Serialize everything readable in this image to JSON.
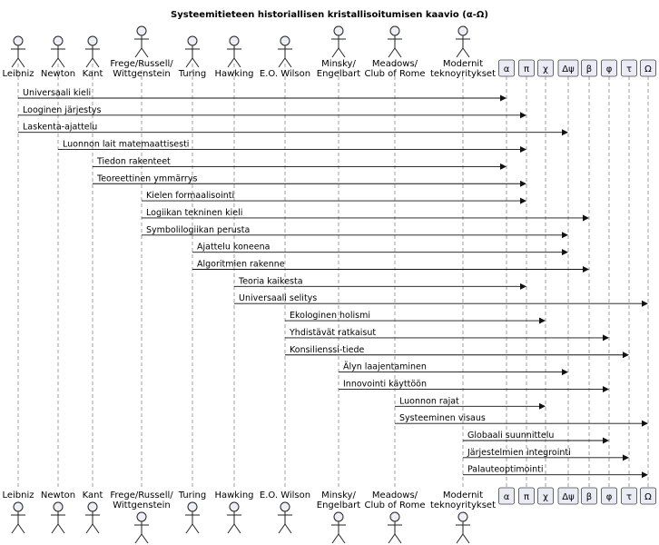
{
  "title": "Systeemitieteen historiallisen kristallisoitumisen kaavio (α-Ω)",
  "actors": [
    {
      "id": "leibniz",
      "lines": [
        "Leibniz"
      ]
    },
    {
      "id": "newton",
      "lines": [
        "Newton"
      ]
    },
    {
      "id": "kant",
      "lines": [
        "Kant"
      ]
    },
    {
      "id": "frege",
      "lines": [
        "Frege/Russell/",
        "Wittgenstein"
      ]
    },
    {
      "id": "turing",
      "lines": [
        "Turing"
      ]
    },
    {
      "id": "hawking",
      "lines": [
        "Hawking"
      ]
    },
    {
      "id": "wilson",
      "lines": [
        "E.O. Wilson"
      ]
    },
    {
      "id": "minsky",
      "lines": [
        "Minsky/",
        "Engelbart"
      ]
    },
    {
      "id": "meadows",
      "lines": [
        "Meadows/",
        "Club of Rome"
      ]
    },
    {
      "id": "modern",
      "lines": [
        "Modernit",
        "teknoyritykset"
      ]
    }
  ],
  "participants": [
    {
      "id": "alpha",
      "label": "α"
    },
    {
      "id": "pi",
      "label": "π"
    },
    {
      "id": "chi",
      "label": "χ"
    },
    {
      "id": "dpsi",
      "label": "Δψ"
    },
    {
      "id": "beta",
      "label": "β"
    },
    {
      "id": "phi",
      "label": "φ"
    },
    {
      "id": "tau",
      "label": "τ"
    },
    {
      "id": "omega",
      "label": "Ω"
    }
  ],
  "messages": [
    {
      "from": "leibniz",
      "to": "alpha",
      "label": "Universaali kieli"
    },
    {
      "from": "leibniz",
      "to": "pi",
      "label": "Looginen järjestys"
    },
    {
      "from": "leibniz",
      "to": "dpsi",
      "label": "Laskenta-ajattelu"
    },
    {
      "from": "newton",
      "to": "pi",
      "label": "Luonnon lait matemaattisesti"
    },
    {
      "from": "kant",
      "to": "alpha",
      "label": "Tiedon rakenteet"
    },
    {
      "from": "kant",
      "to": "pi",
      "label": "Teoreettinen ymmärrys"
    },
    {
      "from": "frege",
      "to": "pi",
      "label": "Kielen formaalisointi"
    },
    {
      "from": "frege",
      "to": "beta",
      "label": "Logiikan tekninen kieli"
    },
    {
      "from": "frege",
      "to": "dpsi",
      "label": "Symbolilogiikan perusta"
    },
    {
      "from": "turing",
      "to": "dpsi",
      "label": "Ajattelu koneena"
    },
    {
      "from": "turing",
      "to": "beta",
      "label": "Algoritmien rakenne"
    },
    {
      "from": "hawking",
      "to": "pi",
      "label": "Teoria kaikesta"
    },
    {
      "from": "hawking",
      "to": "omega",
      "label": "Universaali selitys"
    },
    {
      "from": "wilson",
      "to": "chi",
      "label": "Ekologinen holismi"
    },
    {
      "from": "wilson",
      "to": "phi",
      "label": "Yhdistävät ratkaisut"
    },
    {
      "from": "wilson",
      "to": "tau",
      "label": "Konsilienssi-tiede"
    },
    {
      "from": "minsky",
      "to": "dpsi",
      "label": "Älyn laajentaminen"
    },
    {
      "from": "minsky",
      "to": "phi",
      "label": "Innovointi käyttöön"
    },
    {
      "from": "meadows",
      "to": "chi",
      "label": "Luonnon rajat"
    },
    {
      "from": "meadows",
      "to": "omega",
      "label": "Systeeminen visaus"
    },
    {
      "from": "modern",
      "to": "phi",
      "label": "Globaali suunnittelu"
    },
    {
      "from": "modern",
      "to": "tau",
      "label": "Järjestelmien integrointi"
    },
    {
      "from": "modern",
      "to": "omega",
      "label": "Palauteoptimointi"
    }
  ]
}
